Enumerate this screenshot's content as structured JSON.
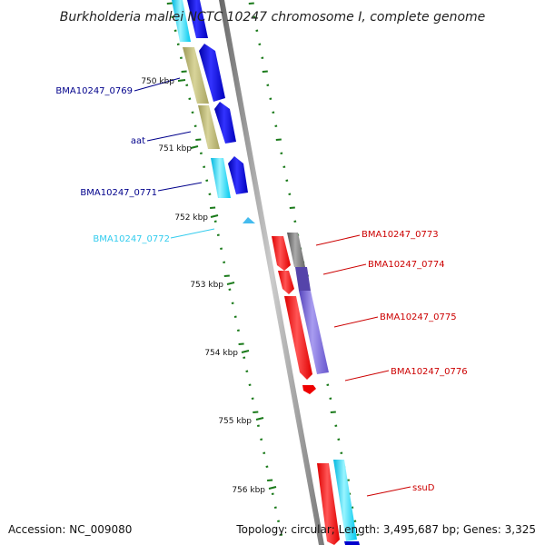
{
  "title": "Burkholderia mallei NCTC 10247 chromosome I, complete genome",
  "footer": {
    "accession": "Accession: NC_009080",
    "topology": "Topology: circular; Length: 3,495,687 bp; Genes: 3,325"
  },
  "ticks": [
    {
      "label": "750 kbp"
    },
    {
      "label": "751 kbp"
    },
    {
      "label": "752 kbp"
    },
    {
      "label": "753 kbp"
    },
    {
      "label": "754 kbp"
    },
    {
      "label": "755 kbp"
    },
    {
      "label": "756 kbp"
    }
  ],
  "genes": [
    {
      "label": "BMA10247_0769",
      "color": "#00008b"
    },
    {
      "label": "aat",
      "color": "#00008b"
    },
    {
      "label": "BMA10247_0771",
      "color": "#00008b"
    },
    {
      "label": "BMA10247_0772",
      "color": "#33ccee"
    },
    {
      "label": "BMA10247_0773",
      "color": "#cc0000"
    },
    {
      "label": "BMA10247_0774",
      "color": "#cc0000"
    },
    {
      "label": "BMA10247_0775",
      "color": "#cc0000"
    },
    {
      "label": "BMA10247_0776",
      "color": "#cc0000"
    },
    {
      "label": "ssuD",
      "color": "#cc0000"
    }
  ],
  "colors": {
    "cds_forward": "#ff0000",
    "cds_reverse": "#0000ee",
    "cds_cyan": "#00e0ff",
    "cds_khaki": "#b5b06a",
    "cds_gray": "#777777",
    "cds_purple": "#7766dd",
    "backbone": "#888888",
    "gc_ticks": "#1a7a1a"
  }
}
